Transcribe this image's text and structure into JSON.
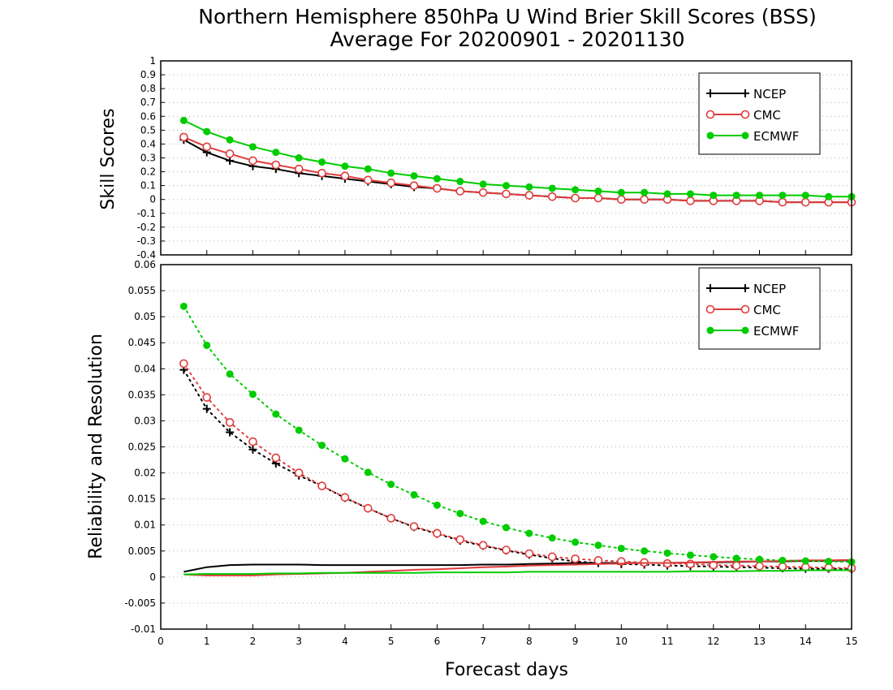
{
  "title_line1": "Northern Hemisphere 850hPa U Wind Brier Skill Scores (BSS)",
  "title_line2": "Average For 20200901 - 20201130",
  "colors": {
    "NCEP": "#000000",
    "CMC": "#e03c3c",
    "ECMWF": "#00cc00",
    "grid": "#b0b0b0"
  },
  "chart_data": [
    {
      "type": "line",
      "xlabel": "",
      "ylabel": "Skill Scores",
      "xlim": [
        0,
        15
      ],
      "ylim": [
        -0.4,
        1
      ],
      "yticks": [
        "-0.4",
        "-0.3",
        "-0.2",
        "-0.1",
        "0",
        "0.1",
        "0.2",
        "0.3",
        "0.4",
        "0.5",
        "0.6",
        "0.7",
        "0.8",
        "0.9",
        "1"
      ],
      "grid": true,
      "legend_position": "top-right",
      "legend": [
        "NCEP",
        "CMC",
        "ECMWF"
      ],
      "x": [
        0.5,
        1,
        1.5,
        2,
        2.5,
        3,
        3.5,
        4,
        4.5,
        5,
        5.5,
        6,
        6.5,
        7,
        7.5,
        8,
        8.5,
        9,
        9.5,
        10,
        10.5,
        11,
        11.5,
        12,
        12.5,
        13,
        13.5,
        14,
        14.5,
        15
      ],
      "series": [
        {
          "name": "NCEP",
          "marker": "plus",
          "values": [
            0.43,
            0.34,
            0.28,
            0.24,
            0.22,
            0.19,
            0.17,
            0.15,
            0.13,
            0.11,
            0.09,
            0.08,
            0.06,
            0.05,
            0.04,
            0.03,
            0.02,
            0.01,
            0.01,
            0.0,
            0.0,
            0.0,
            -0.01,
            -0.01,
            -0.01,
            -0.01,
            -0.02,
            -0.02,
            -0.02,
            -0.02
          ]
        },
        {
          "name": "CMC",
          "marker": "open-circle",
          "values": [
            0.45,
            0.38,
            0.33,
            0.28,
            0.25,
            0.22,
            0.19,
            0.17,
            0.14,
            0.12,
            0.1,
            0.08,
            0.06,
            0.05,
            0.04,
            0.03,
            0.02,
            0.01,
            0.01,
            0.0,
            0.0,
            0.0,
            -0.01,
            -0.01,
            -0.01,
            -0.01,
            -0.02,
            -0.02,
            -0.02,
            -0.02
          ]
        },
        {
          "name": "ECMWF",
          "marker": "filled-circle",
          "values": [
            0.57,
            0.49,
            0.43,
            0.38,
            0.34,
            0.3,
            0.27,
            0.24,
            0.22,
            0.19,
            0.17,
            0.15,
            0.13,
            0.11,
            0.1,
            0.09,
            0.08,
            0.07,
            0.06,
            0.05,
            0.05,
            0.04,
            0.04,
            0.03,
            0.03,
            0.03,
            0.03,
            0.03,
            0.02,
            0.02
          ]
        }
      ]
    },
    {
      "type": "line",
      "xlabel": "Forecast days",
      "ylabel": "Reliability and Resolution",
      "xlim": [
        0,
        15
      ],
      "ylim": [
        -0.01,
        0.06
      ],
      "yticks": [
        "-0.01",
        "-0.005",
        "0",
        "0.005",
        "0.01",
        "0.015",
        "0.02",
        "0.025",
        "0.03",
        "0.035",
        "0.04",
        "0.045",
        "0.05",
        "0.055",
        "0.06"
      ],
      "xticks": [
        "0",
        "1",
        "2",
        "3",
        "4",
        "5",
        "6",
        "7",
        "8",
        "9",
        "10",
        "11",
        "12",
        "13",
        "14",
        "15"
      ],
      "grid": true,
      "legend_position": "top-right",
      "legend": [
        "NCEP",
        "CMC",
        "ECMWF"
      ],
      "x": [
        0.5,
        1,
        1.5,
        2,
        2.5,
        3,
        3.5,
        4,
        4.5,
        5,
        5.5,
        6,
        6.5,
        7,
        7.5,
        8,
        8.5,
        9,
        9.5,
        10,
        10.5,
        11,
        11.5,
        12,
        12.5,
        13,
        13.5,
        14,
        14.5,
        15
      ],
      "series": [
        {
          "name": "NCEP",
          "component": "resolution",
          "style": "dotted",
          "marker": "plus",
          "values": [
            0.0398,
            0.0323,
            0.0278,
            0.0245,
            0.0218,
            0.0195,
            0.0175,
            0.0152,
            0.0132,
            0.0113,
            0.0096,
            0.0083,
            0.007,
            0.006,
            0.0051,
            0.0043,
            0.0036,
            0.003,
            0.0027,
            0.0025,
            0.0024,
            0.0022,
            0.0021,
            0.002,
            0.0019,
            0.0018,
            0.0017,
            0.0016,
            0.0016,
            0.0015
          ]
        },
        {
          "name": "NCEP",
          "component": "reliability",
          "style": "solid",
          "marker": "none",
          "values": [
            0.001,
            0.0019,
            0.0023,
            0.0024,
            0.0024,
            0.0024,
            0.0023,
            0.0023,
            0.0023,
            0.0023,
            0.0023,
            0.0023,
            0.0023,
            0.0024,
            0.0024,
            0.0025,
            0.0026,
            0.0027,
            0.0027,
            0.0027,
            0.0027,
            0.0027,
            0.0028,
            0.0028,
            0.0029,
            0.003,
            0.003,
            0.0031,
            0.0031,
            0.0032
          ]
        },
        {
          "name": "CMC",
          "component": "resolution",
          "style": "dotted",
          "marker": "open-circle",
          "values": [
            0.041,
            0.0345,
            0.0297,
            0.026,
            0.0229,
            0.02,
            0.0175,
            0.0153,
            0.0132,
            0.0113,
            0.0097,
            0.0084,
            0.0072,
            0.0061,
            0.0052,
            0.0045,
            0.0039,
            0.0035,
            0.0032,
            0.003,
            0.0028,
            0.0026,
            0.0025,
            0.0023,
            0.0022,
            0.0021,
            0.002,
            0.0019,
            0.0018,
            0.0017
          ]
        },
        {
          "name": "CMC",
          "component": "reliability",
          "style": "solid",
          "marker": "none",
          "values": [
            0.0005,
            0.0003,
            0.0003,
            0.0003,
            0.0005,
            0.0006,
            0.0007,
            0.0008,
            0.001,
            0.0012,
            0.0014,
            0.0015,
            0.0017,
            0.0019,
            0.002,
            0.0022,
            0.0023,
            0.0024,
            0.0025,
            0.0026,
            0.0027,
            0.0027,
            0.0028,
            0.0029,
            0.003,
            0.003,
            0.0031,
            0.0032,
            0.0032,
            0.0033
          ]
        },
        {
          "name": "ECMWF",
          "component": "resolution",
          "style": "dotted",
          "marker": "filled-circle",
          "values": [
            0.052,
            0.0445,
            0.039,
            0.0351,
            0.0313,
            0.0282,
            0.0253,
            0.0227,
            0.0201,
            0.0178,
            0.0158,
            0.0138,
            0.0122,
            0.0107,
            0.0095,
            0.0084,
            0.0075,
            0.0067,
            0.0061,
            0.0055,
            0.005,
            0.0046,
            0.0042,
            0.0039,
            0.0036,
            0.0034,
            0.0032,
            0.0031,
            0.003,
            0.0029
          ]
        },
        {
          "name": "ECMWF",
          "component": "reliability",
          "style": "solid",
          "marker": "none",
          "values": [
            0.0005,
            0.0006,
            0.0006,
            0.0006,
            0.0007,
            0.0007,
            0.0008,
            0.0008,
            0.0008,
            0.0008,
            0.0008,
            0.0009,
            0.0009,
            0.0009,
            0.0009,
            0.001,
            0.001,
            0.001,
            0.001,
            0.001,
            0.001,
            0.001,
            0.0011,
            0.0011,
            0.0011,
            0.0012,
            0.0012,
            0.0013,
            0.0013,
            0.0013
          ]
        }
      ]
    }
  ]
}
